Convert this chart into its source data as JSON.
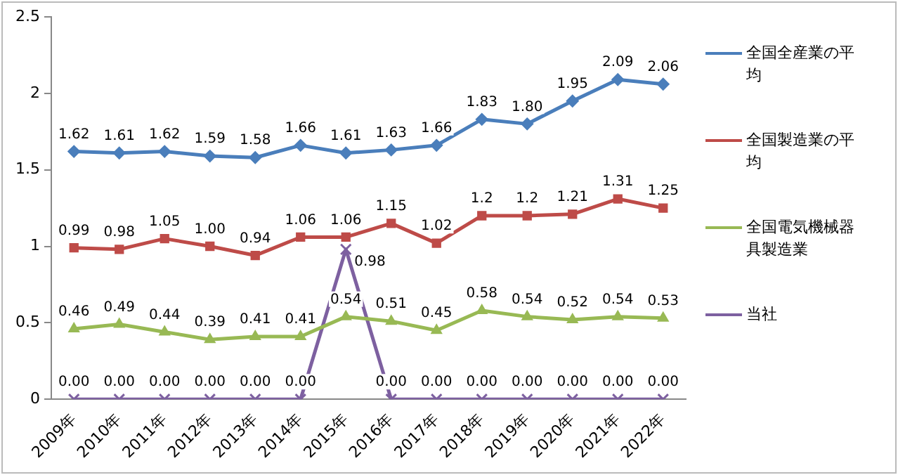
{
  "chart_data": {
    "type": "line",
    "categories": [
      "2009年",
      "2010年",
      "2011年",
      "2012年",
      "2013年",
      "2014年",
      "2015年",
      "2016年",
      "2017年",
      "2018年",
      "2019年",
      "2020年",
      "2021年",
      "2022年"
    ],
    "series": [
      {
        "name": "全国全産業の平均",
        "color": "#4a7ebb",
        "marker": "diamond",
        "values": [
          1.62,
          1.61,
          1.62,
          1.59,
          1.58,
          1.66,
          1.61,
          1.63,
          1.66,
          1.83,
          1.8,
          1.95,
          2.09,
          2.06
        ],
        "value_labels": [
          "1.62",
          "1.61",
          "1.62",
          "1.59",
          "1.58",
          "1.66",
          "1.61",
          "1.63",
          "1.66",
          "1.83",
          "1.80",
          "1.95",
          "2.09",
          "2.06"
        ]
      },
      {
        "name": "全国製造業の平均",
        "color": "#be4b48",
        "marker": "square",
        "values": [
          0.99,
          0.98,
          1.05,
          1.0,
          0.94,
          1.06,
          1.06,
          1.15,
          1.02,
          1.2,
          1.2,
          1.21,
          1.31,
          1.25
        ],
        "value_labels": [
          "0.99",
          "0.98",
          "1.05",
          "1.00",
          "0.94",
          "1.06",
          "1.06",
          "1.15",
          "1.02",
          "1.2",
          "1.2",
          "1.21",
          "1.31",
          "1.25"
        ]
      },
      {
        "name": "全国電気機械器具製造業",
        "color": "#98b954",
        "marker": "triangle",
        "values": [
          0.46,
          0.49,
          0.44,
          0.39,
          0.41,
          0.41,
          0.54,
          0.51,
          0.45,
          0.58,
          0.54,
          0.52,
          0.54,
          0.53
        ],
        "value_labels": [
          "0.46",
          "0.49",
          "0.44",
          "0.39",
          "0.41",
          "0.41",
          "0.54",
          "0.51",
          "0.45",
          "0.58",
          "0.54",
          "0.52",
          "0.54",
          "0.53"
        ]
      },
      {
        "name": "当社",
        "color": "#7d60a0",
        "marker": "cross",
        "values": [
          0,
          0,
          0,
          0,
          0,
          0,
          0.98,
          0,
          0,
          0,
          0,
          0,
          0,
          0
        ],
        "value_labels": [
          "0.00",
          "0.00",
          "0.00",
          "0.00",
          "0.00",
          "0.00",
          "0.98",
          "0.00",
          "0.00",
          "0.00",
          "0.00",
          "0.00",
          "0.00",
          "0.00"
        ]
      }
    ],
    "ylim": [
      0,
      2.5
    ],
    "yticks": [
      0,
      0.5,
      1,
      1.5,
      2,
      2.5
    ],
    "grid": false,
    "legend": "right",
    "line_style": "solid"
  }
}
